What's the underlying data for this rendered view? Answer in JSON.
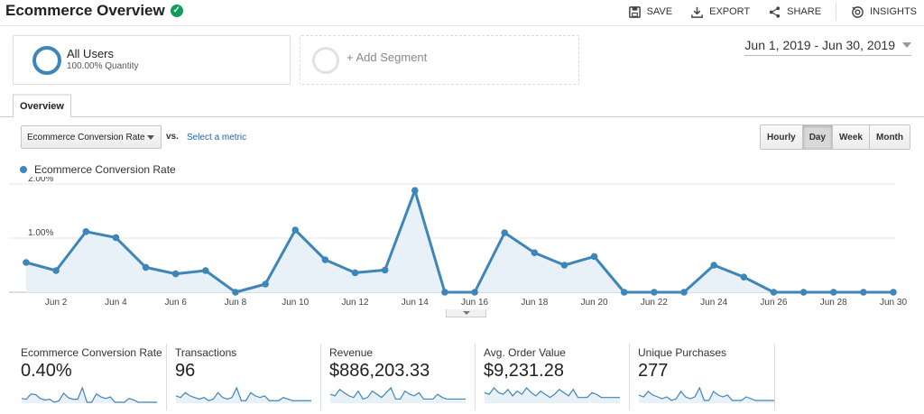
{
  "header": {
    "title": "Ecommerce Overview",
    "actions": [
      {
        "label": "SAVE",
        "icon": "save-icon"
      },
      {
        "label": "EXPORT",
        "icon": "export-icon"
      },
      {
        "label": "SHARE",
        "icon": "share-icon"
      },
      {
        "label": "INSIGHTS",
        "icon": "insights-icon"
      }
    ]
  },
  "segments": {
    "primary": {
      "name": "All Users",
      "sub": "100.00% Quantity"
    },
    "add_label": "+ Add Segment"
  },
  "date_range": "Jun 1, 2019 - Jun 30, 2019",
  "tab": {
    "label": "Overview"
  },
  "metric_selector": {
    "value": "Ecommerce Conversion Rate",
    "vs": "vs.",
    "select_label": "Select a metric"
  },
  "granularity": {
    "options": [
      "Hourly",
      "Day",
      "Week",
      "Month"
    ],
    "active": "Day"
  },
  "colors": {
    "accent": "#3e85b8",
    "fill": "#e8f1f8"
  },
  "chart_data": {
    "type": "area",
    "series": [
      {
        "name": "Ecommerce Conversion Rate",
        "x": [
          "Jun 1",
          "Jun 2",
          "Jun 3",
          "Jun 4",
          "Jun 5",
          "Jun 6",
          "Jun 7",
          "Jun 8",
          "Jun 9",
          "Jun 10",
          "Jun 11",
          "Jun 12",
          "Jun 13",
          "Jun 14",
          "Jun 15",
          "Jun 16",
          "Jun 17",
          "Jun 18",
          "Jun 19",
          "Jun 20",
          "Jun 21",
          "Jun 22",
          "Jun 23",
          "Jun 24",
          "Jun 25",
          "Jun 26",
          "Jun 27",
          "Jun 28",
          "Jun 29",
          "Jun 30"
        ],
        "values": [
          0.55,
          0.4,
          1.12,
          1.01,
          0.46,
          0.34,
          0.4,
          0.0,
          0.15,
          1.15,
          0.6,
          0.36,
          0.41,
          1.88,
          0.0,
          0.0,
          1.1,
          0.73,
          0.5,
          0.66,
          0.0,
          0.0,
          0.0,
          0.5,
          0.28,
          0.0,
          0.0,
          0.0,
          0.0,
          0.0
        ]
      }
    ],
    "x_tick_labels": [
      "Jun 2",
      "Jun 4",
      "Jun 6",
      "Jun 8",
      "Jun 10",
      "Jun 12",
      "Jun 14",
      "Jun 16",
      "Jun 18",
      "Jun 20",
      "Jun 22",
      "Jun 24",
      "Jun 26",
      "Jun 28",
      "Jun 30"
    ],
    "y_tick_labels": [
      "2.00%",
      "1.00%"
    ],
    "ylim": [
      0,
      2.0
    ],
    "grid": true,
    "legend": "top-left"
  },
  "metrics": [
    {
      "label": "Ecommerce Conversion Rate",
      "value": "0.40%",
      "spark": [
        0.5,
        0.4,
        1.1,
        1.0,
        0.5,
        0.3,
        0.4,
        0.0,
        0.2,
        1.2,
        0.6,
        0.4,
        0.4,
        1.9,
        0.0,
        0.0,
        1.1,
        0.7,
        0.5,
        0.7,
        0.0,
        0.0,
        0.0,
        0.5,
        0.3,
        0.0,
        0.0,
        0.0,
        0.0,
        0.0
      ]
    },
    {
      "label": "Transactions",
      "value": "96",
      "spark": [
        4,
        3,
        6,
        4,
        3,
        2,
        3,
        1,
        2,
        6,
        3,
        2,
        3,
        9,
        1,
        1,
        6,
        4,
        3,
        4,
        1,
        1,
        1,
        3,
        2,
        1,
        1,
        1,
        1,
        1
      ]
    },
    {
      "label": "Revenue",
      "value": "$886,203.33",
      "spark": [
        5,
        4,
        8,
        6,
        4,
        3,
        7,
        2,
        3,
        7,
        5,
        3,
        6,
        9,
        2,
        2,
        7,
        5,
        4,
        6,
        2,
        2,
        2,
        5,
        3,
        2,
        2,
        2,
        2,
        2
      ]
    },
    {
      "label": "Avg. Order Value",
      "value": "$9,231.28",
      "spark": [
        6,
        5,
        9,
        6,
        5,
        8,
        4,
        7,
        5,
        9,
        6,
        4,
        7,
        5,
        3,
        5,
        8,
        6,
        4,
        8,
        3,
        3,
        3,
        6,
        5,
        3,
        3,
        3,
        3,
        3
      ]
    },
    {
      "label": "Unique Purchases",
      "value": "277",
      "spark": [
        4,
        3,
        6,
        4,
        3,
        2,
        3,
        1,
        2,
        6,
        3,
        2,
        3,
        8,
        1,
        1,
        6,
        4,
        3,
        4,
        1,
        1,
        1,
        3,
        2,
        1,
        1,
        1,
        1,
        1
      ]
    }
  ]
}
